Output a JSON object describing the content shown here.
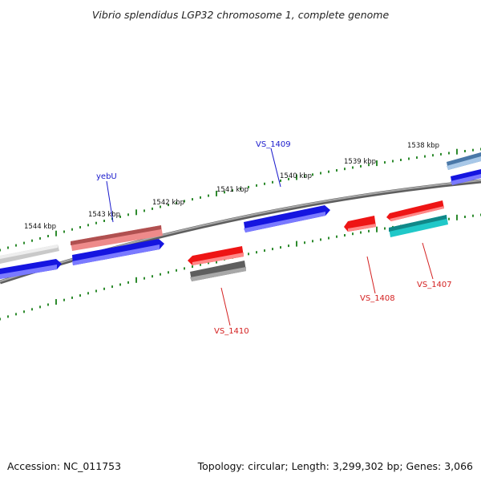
{
  "title": "Vibrio splendidus LGP32 chromosome 1, complete genome",
  "footer": {
    "accession": "Accession: NC_011753",
    "summary": "Topology: circular; Length: 3,299,302 bp; Genes: 3,066"
  },
  "colors": {
    "backbone": "#808080",
    "tick": "#2e8b2e",
    "label_blue": "#1a1acc",
    "label_red": "#d42020",
    "gene_blue": "#1010e0",
    "gene_pink": "#ee8888",
    "gene_red": "#ee1010",
    "gene_gray": "#6a6a6a",
    "gene_lightgray": "#c8c8c8",
    "gene_cyan": "#20c8c8",
    "gene_steel": "#4a7aaa"
  },
  "scale": {
    "ticks_kbp": [
      1538,
      1539,
      1540,
      1541,
      1542,
      1543,
      1544
    ],
    "tick_unit": "kbp"
  },
  "gene_labels": [
    {
      "name": "VS_1409",
      "color": "label_blue"
    },
    {
      "name": "yebU",
      "color": "label_blue"
    },
    {
      "name": "VS_1410",
      "color": "label_red"
    },
    {
      "name": "VS_1408",
      "color": "label_red"
    },
    {
      "name": "VS_1407",
      "color": "label_red"
    }
  ]
}
